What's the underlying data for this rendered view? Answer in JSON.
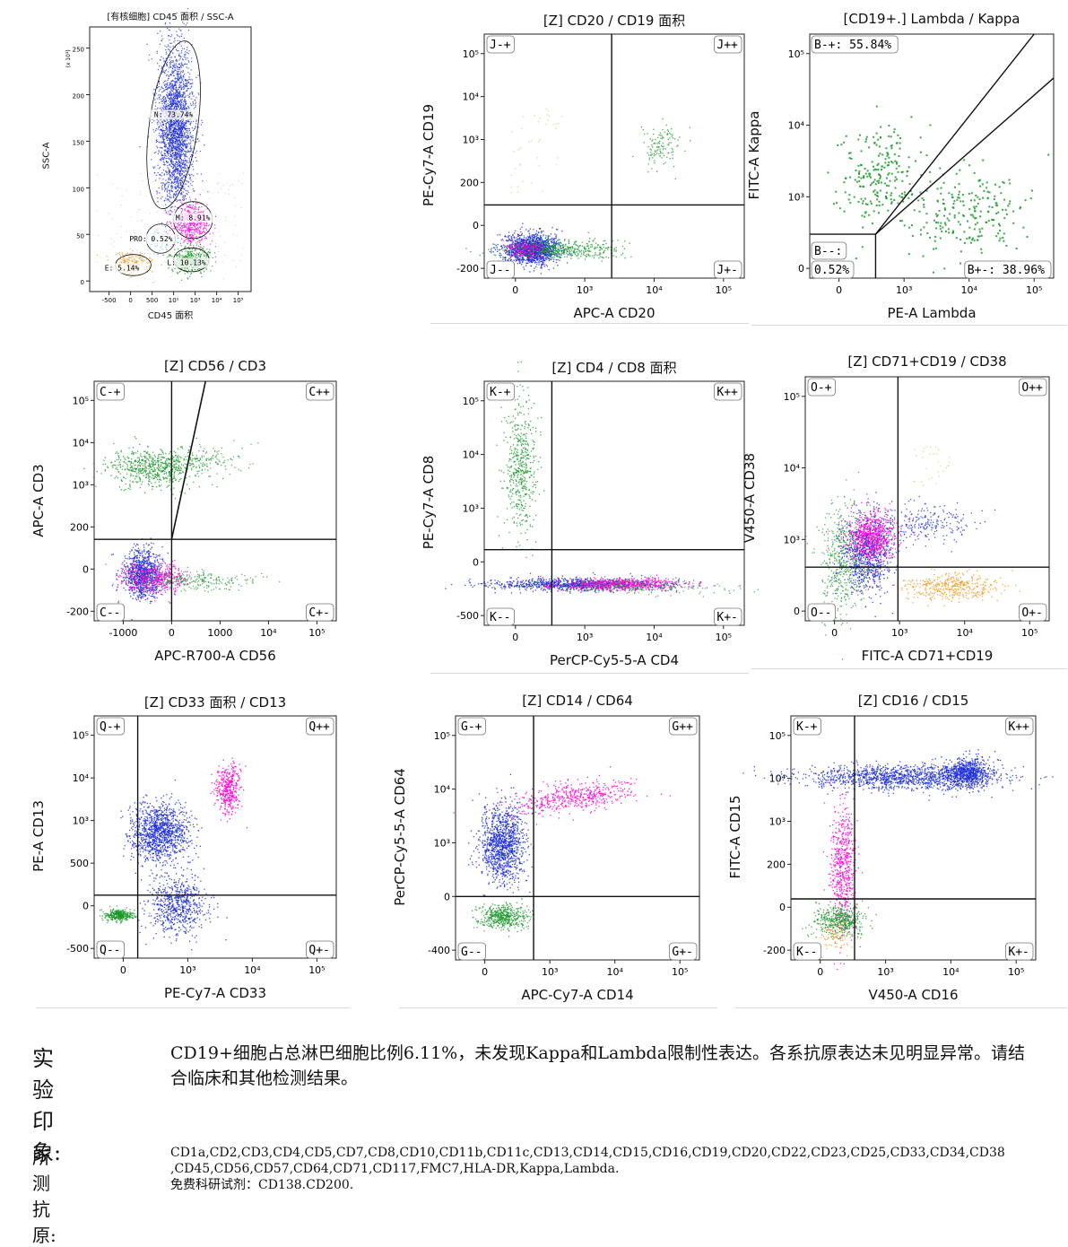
{
  "report": {
    "impression_label": "实验印象:",
    "impression_text": "CD19+细胞占总淋巴细胞比例6.11%，未发现Kappa和Lambda限制性表达。各系抗原表达未见明显异常。请结合临床和其他检测结果。",
    "antigen_label": "所测抗原:",
    "antigen_line1": "CD1a,CD2,CD3,CD4,CD5,CD7,CD8,CD10,CD11b,CD11c,CD13,CD14,CD15,CD16,CD19,CD20,CD22,CD23,CD25,CD33,CD34,CD38",
    "antigen_line2": ",CD45,CD56,CD57,CD64,CD71,CD117,FMC7,HLA-DR,Kappa,Lambda.",
    "antigen_line3": "免费科研试剂：CD138.CD200."
  },
  "colors": {
    "blue": "#1f2fd6",
    "magenta": "#ff00dc",
    "green": "#1a9a2a",
    "orange": "#f39a1e",
    "gray": "#9a9a9a",
    "olive": "#c9c96a",
    "cyan": "#7fd0f0"
  },
  "chart_data": [
    {
      "id": "p1",
      "type": "scatter",
      "title": "[有核细胞] CD45 面积 / SSC-A",
      "xlabel": "CD45 面积",
      "ylabel": "SSC-A",
      "y_multiplier": "(x 10³)",
      "x_ticks": [
        "-500",
        "0",
        "500",
        "10¹",
        "10³",
        "10⁴",
        "10⁵"
      ],
      "y_ticks": [
        "250",
        "200",
        "150",
        "100",
        "50",
        "0"
      ],
      "gates": [
        {
          "name": "N",
          "label": "N: 73.74%",
          "percent": 73.74
        },
        {
          "name": "M",
          "label": "M: 8.91%",
          "percent": 8.91
        },
        {
          "name": "PRO",
          "label": "PRO: 0.52%",
          "percent": 0.52
        },
        {
          "name": "L",
          "label": "L: 10.13%",
          "percent": 10.13
        },
        {
          "name": "E",
          "label": "E: 5.14%",
          "percent": 5.14
        }
      ]
    },
    {
      "id": "p2",
      "type": "scatter",
      "title": "[Z] CD20 / CD19 面积",
      "xlabel": "APC-A CD20",
      "ylabel": "PE-Cy7-A CD19",
      "x_ticks": [
        "0",
        "10³",
        "10⁴",
        "10⁵"
      ],
      "y_ticks": [
        "10⁵",
        "10⁴",
        "10³",
        "200",
        "0",
        "-200"
      ],
      "quadrants": [
        "J-+",
        "J++",
        "J--",
        "J+-"
      ]
    },
    {
      "id": "p3",
      "type": "scatter",
      "title": "[CD19+.] Lambda / Kappa",
      "xlabel": "PE-A Lambda",
      "ylabel": "FITC-A Kappa",
      "x_ticks": [
        "0",
        "10³",
        "10⁴",
        "10⁵"
      ],
      "y_ticks": [
        "10⁵",
        "10⁴",
        "10³",
        "0"
      ],
      "gates": [
        {
          "name": "B-+",
          "label": "B-+: 55.84%",
          "percent": 55.84
        },
        {
          "name": "B--",
          "label": "B--:",
          "value": "0.52%",
          "percent": 0.52
        },
        {
          "name": "B+-",
          "label": "B+-: 38.96%",
          "percent": 38.96
        }
      ]
    },
    {
      "id": "p4",
      "type": "scatter",
      "title": "[Z] CD56 / CD3",
      "xlabel": "APC-R700-A CD56",
      "ylabel": "APC-A CD3",
      "x_ticks": [
        "-1000",
        "0",
        "1000",
        "10⁴",
        "10⁵"
      ],
      "y_ticks": [
        "10⁵",
        "10⁴",
        "10³",
        "200",
        "0",
        "-200"
      ],
      "quadrants": [
        "C-+",
        "C++",
        "C--",
        "C+-"
      ]
    },
    {
      "id": "p5",
      "type": "scatter",
      "title": "[Z] CD4 / CD8 面积",
      "xlabel": "PerCP-Cy5-5-A CD4",
      "ylabel": "PE-Cy7-A CD8",
      "x_ticks": [
        "0",
        "10³",
        "10⁴",
        "10⁵"
      ],
      "y_ticks": [
        "10⁵",
        "10⁴",
        "10³",
        "0",
        "-500"
      ],
      "quadrants": [
        "K-+",
        "K++",
        "K--",
        "K+-"
      ]
    },
    {
      "id": "p6",
      "type": "scatter",
      "title": "[Z] CD71+CD19 / CD38",
      "xlabel": "FITC-A CD71+CD19",
      "ylabel": "V450-A CD38",
      "x_ticks": [
        "0",
        "10³",
        "10⁴",
        "10⁵"
      ],
      "y_ticks": [
        "10⁵",
        "10⁴",
        "10³",
        "0"
      ],
      "quadrants": [
        "O-+",
        "O++",
        "O--",
        "O+-"
      ]
    },
    {
      "id": "p7",
      "type": "scatter",
      "title": "[Z] CD33 面积 / CD13",
      "xlabel": "PE-Cy7-A CD33",
      "ylabel": "PE-A CD13",
      "x_ticks": [
        "0",
        "10³",
        "10⁴",
        "10⁵"
      ],
      "y_ticks": [
        "10⁵",
        "10⁴",
        "10³",
        "500",
        "0",
        "-500"
      ],
      "quadrants": [
        "Q-+",
        "Q++",
        "Q--",
        "Q+-"
      ]
    },
    {
      "id": "p8",
      "type": "scatter",
      "title": "[Z] CD14 / CD64",
      "xlabel": "APC-Cy7-A CD14",
      "ylabel": "PerCP-Cy5-5-A CD64",
      "x_ticks": [
        "0",
        "10³",
        "10⁴",
        "10⁵"
      ],
      "y_ticks": [
        "10⁵",
        "10⁴",
        "10³",
        "0",
        "-400"
      ],
      "quadrants": [
        "G-+",
        "G++",
        "G--",
        "G+-"
      ]
    },
    {
      "id": "p9",
      "type": "scatter",
      "title": "[Z] CD16 / CD15",
      "xlabel": "V450-A CD16",
      "ylabel": "FITC-A CD15",
      "x_ticks": [
        "0",
        "10³",
        "10⁴",
        "10⁵"
      ],
      "y_ticks": [
        "10⁵",
        "10⁴",
        "10³",
        "200",
        "0",
        "-200"
      ],
      "quadrants": [
        "K-+",
        "K++",
        "K--",
        "K+-"
      ]
    }
  ]
}
